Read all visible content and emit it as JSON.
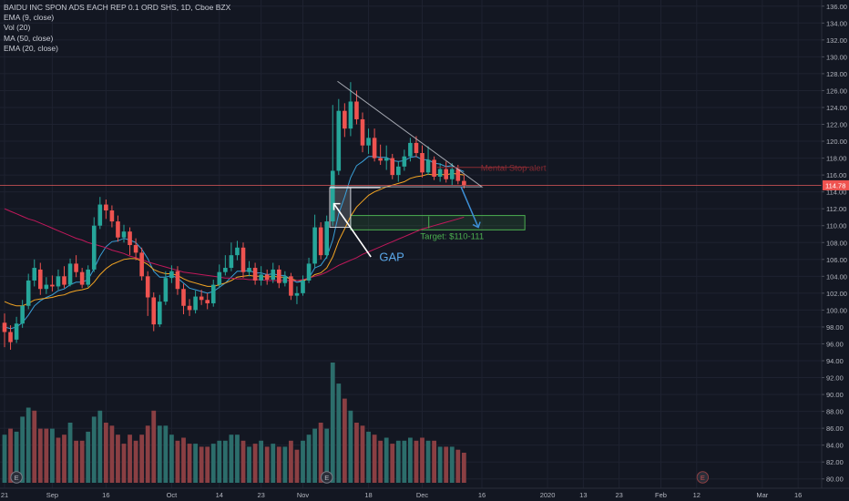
{
  "legend": {
    "title": "BAIDU INC SPON ADS EACH REP 0.1 ORD SHS, 1D, Cboe BZX",
    "ema9": "EMA (9, close)",
    "vol": "Vol (20)",
    "ma50": "MA (50, close)",
    "ema20": "EMA (20, close)"
  },
  "annotations": {
    "gap": "GAP",
    "target": "Target: $110-111",
    "mental_stop": "Mental Stop alert"
  },
  "colors": {
    "background": "#131722",
    "up": "#26a69a",
    "down": "#ef5350",
    "vol_up": "#2c6d6b",
    "vol_down": "#8a3f43",
    "ema9": "#3aa0d8",
    "ema20": "#f5a623",
    "ma50": "#c2185b",
    "price_line": "#e05a5a",
    "price_badge": "#ef5350",
    "target_box": "#4caf50",
    "blue_arrow": "#3d8fd6",
    "triangle": "#c9ccd4",
    "gap_box": "#5d6066"
  },
  "chart_data": {
    "type": "candlestick",
    "symbol": "BAIDU INC SPON ADS EACH REP 0.1 ORD SHS",
    "interval": "1D",
    "exchange": "Cboe BZX",
    "last_price": 114.78,
    "last_price_label": "114.78",
    "ylim": [
      79,
      137
    ],
    "y_ticks": [
      "80.00",
      "82.00",
      "84.00",
      "86.00",
      "88.00",
      "90.00",
      "92.00",
      "94.00",
      "96.00",
      "98.00",
      "100.00",
      "102.00",
      "104.00",
      "106.00",
      "108.00",
      "110.00",
      "112.00",
      "114.00",
      "116.00",
      "118.00",
      "120.00",
      "122.00",
      "124.00",
      "126.00",
      "128.00",
      "130.00",
      "132.00",
      "134.00",
      "136.00"
    ],
    "x_ticks": [
      {
        "label": "21",
        "day": 0
      },
      {
        "label": "Sep",
        "day": 8
      },
      {
        "label": "16",
        "day": 17
      },
      {
        "label": "Oct",
        "day": 28
      },
      {
        "label": "14",
        "day": 36
      },
      {
        "label": "23",
        "day": 43
      },
      {
        "label": "Nov",
        "day": 50
      },
      {
        "label": "18",
        "day": 61
      },
      {
        "label": "Dec",
        "day": 70
      },
      {
        "label": "16",
        "day": 80
      },
      {
        "label": "2020",
        "day": 91
      },
      {
        "label": "13",
        "day": 97
      },
      {
        "label": "23",
        "day": 103
      },
      {
        "label": "Feb",
        "day": 110
      },
      {
        "label": "12",
        "day": 116
      },
      {
        "label": "Mar",
        "day": 127
      },
      {
        "label": "16",
        "day": 133
      }
    ],
    "earnings_markers": [
      {
        "label": "E",
        "day": 2
      },
      {
        "label": "E",
        "day": 54
      },
      {
        "label": "E",
        "day": 117
      }
    ],
    "candles": [
      [
        98.5,
        97.4,
        99.6,
        95.6
      ],
      [
        97.4,
        96.2,
        98.2,
        95.3
      ],
      [
        96.5,
        98.4,
        99.2,
        96.1
      ],
      [
        98.4,
        100.5,
        101.2,
        97.9
      ],
      [
        100.5,
        103.5,
        104.3,
        100.1
      ],
      [
        103.5,
        105.0,
        106.0,
        102.8
      ],
      [
        104.8,
        102.5,
        105.6,
        101.8
      ],
      [
        102.5,
        103.0,
        103.9,
        101.9
      ],
      [
        103.0,
        102.8,
        104.1,
        102.2
      ],
      [
        102.8,
        104.0,
        104.8,
        102.4
      ],
      [
        104.0,
        103.0,
        105.2,
        102.6
      ],
      [
        103.0,
        105.5,
        106.1,
        102.8
      ],
      [
        105.5,
        104.5,
        106.5,
        103.9
      ],
      [
        104.5,
        103.0,
        105.0,
        102.6
      ],
      [
        103.0,
        104.8,
        105.3,
        102.7
      ],
      [
        104.8,
        110.0,
        111.0,
        104.5
      ],
      [
        110.0,
        112.5,
        113.4,
        109.6
      ],
      [
        112.5,
        111.8,
        113.1,
        110.8
      ],
      [
        111.8,
        110.5,
        112.4,
        109.8
      ],
      [
        110.5,
        108.6,
        111.2,
        108.1
      ],
      [
        108.6,
        109.3,
        110.1,
        108.0
      ],
      [
        109.3,
        107.7,
        109.8,
        106.5
      ],
      [
        107.7,
        106.8,
        108.5,
        105.9
      ],
      [
        106.8,
        104.0,
        107.4,
        103.5
      ],
      [
        104.0,
        101.5,
        104.6,
        99.3
      ],
      [
        101.5,
        98.3,
        102.1,
        97.5
      ],
      [
        98.3,
        101.0,
        101.8,
        98.0
      ],
      [
        101.0,
        103.8,
        104.6,
        100.6
      ],
      [
        103.8,
        104.6,
        105.3,
        103.2
      ],
      [
        104.6,
        102.5,
        105.2,
        101.8
      ],
      [
        102.5,
        100.5,
        103.1,
        99.5
      ],
      [
        100.5,
        100.0,
        101.3,
        99.3
      ],
      [
        100.0,
        101.6,
        102.3,
        99.6
      ],
      [
        101.6,
        101.2,
        102.4,
        100.6
      ],
      [
        101.2,
        100.8,
        102.0,
        100.1
      ],
      [
        100.8,
        103.0,
        103.6,
        100.4
      ],
      [
        103.0,
        104.5,
        105.4,
        102.6
      ],
      [
        104.5,
        105.0,
        106.5,
        104.1
      ],
      [
        105.0,
        106.5,
        108.0,
        104.6
      ],
      [
        106.5,
        107.4,
        108.2,
        105.9
      ],
      [
        107.4,
        104.5,
        108.0,
        103.8
      ],
      [
        104.5,
        105.0,
        105.8,
        104.0
      ],
      [
        105.0,
        103.5,
        105.6,
        103.0
      ],
      [
        103.5,
        104.2,
        105.2,
        102.9
      ],
      [
        104.2,
        103.6,
        104.8,
        103.0
      ],
      [
        103.6,
        104.8,
        105.6,
        103.2
      ],
      [
        104.8,
        103.2,
        105.3,
        102.6
      ],
      [
        103.2,
        104.0,
        104.6,
        102.8
      ],
      [
        104.0,
        101.7,
        104.4,
        101.2
      ],
      [
        101.7,
        102.0,
        102.8,
        100.7
      ],
      [
        102.0,
        103.5,
        104.1,
        101.7
      ],
      [
        103.5,
        105.5,
        106.2,
        103.2
      ],
      [
        105.5,
        109.8,
        111.3,
        105.0
      ],
      [
        109.8,
        106.5,
        110.4,
        106.0
      ],
      [
        106.5,
        110.5,
        111.2,
        106.1
      ],
      [
        110.5,
        116.5,
        124.3,
        110.0
      ],
      [
        116.5,
        123.6,
        125.0,
        116.0
      ],
      [
        123.6,
        121.5,
        124.5,
        120.5
      ],
      [
        121.5,
        124.7,
        127.0,
        120.6
      ],
      [
        124.7,
        122.6,
        126.0,
        122.0
      ],
      [
        122.6,
        119.5,
        123.4,
        118.7
      ],
      [
        119.5,
        120.4,
        121.5,
        118.5
      ],
      [
        120.4,
        118.0,
        121.5,
        117.6
      ],
      [
        118.0,
        117.7,
        119.6,
        117.2
      ],
      [
        117.7,
        118.0,
        119.5,
        116.6
      ],
      [
        118.0,
        116.0,
        118.5,
        115.5
      ],
      [
        116.0,
        117.0,
        117.6,
        115.2
      ],
      [
        117.0,
        118.2,
        119.0,
        116.5
      ],
      [
        118.2,
        119.8,
        120.4,
        117.6
      ],
      [
        119.8,
        118.6,
        120.6,
        118.1
      ],
      [
        118.6,
        116.3,
        119.5,
        115.7
      ],
      [
        116.3,
        117.8,
        119.4,
        116.0
      ],
      [
        117.8,
        115.8,
        118.2,
        115.4
      ],
      [
        115.8,
        116.7,
        117.4,
        115.2
      ],
      [
        116.7,
        115.5,
        117.6,
        115.1
      ],
      [
        115.5,
        116.7,
        117.4,
        114.8
      ],
      [
        116.7,
        115.3,
        117.2,
        114.9
      ],
      [
        115.3,
        114.8,
        116.0,
        114.4
      ]
    ],
    "volume": [
      [
        16,
        1
      ],
      [
        18,
        0
      ],
      [
        17,
        1
      ],
      [
        22,
        1
      ],
      [
        25,
        1
      ],
      [
        24,
        0
      ],
      [
        18,
        0
      ],
      [
        18,
        0
      ],
      [
        18,
        1
      ],
      [
        15,
        0
      ],
      [
        16,
        0
      ],
      [
        20,
        1
      ],
      [
        14,
        0
      ],
      [
        14,
        0
      ],
      [
        17,
        1
      ],
      [
        22,
        1
      ],
      [
        24,
        1
      ],
      [
        20,
        0
      ],
      [
        19,
        0
      ],
      [
        16,
        0
      ],
      [
        13,
        0
      ],
      [
        16,
        0
      ],
      [
        14,
        0
      ],
      [
        16,
        0
      ],
      [
        19,
        0
      ],
      [
        24,
        0
      ],
      [
        19,
        1
      ],
      [
        19,
        1
      ],
      [
        16,
        1
      ],
      [
        14,
        0
      ],
      [
        15,
        0
      ],
      [
        13,
        0
      ],
      [
        13,
        1
      ],
      [
        12,
        0
      ],
      [
        12,
        0
      ],
      [
        13,
        1
      ],
      [
        14,
        1
      ],
      [
        14,
        1
      ],
      [
        16,
        1
      ],
      [
        16,
        1
      ],
      [
        14,
        0
      ],
      [
        12,
        1
      ],
      [
        13,
        0
      ],
      [
        14,
        1
      ],
      [
        12,
        0
      ],
      [
        13,
        1
      ],
      [
        12,
        0
      ],
      [
        12,
        1
      ],
      [
        14,
        0
      ],
      [
        11,
        0
      ],
      [
        14,
        1
      ],
      [
        16,
        1
      ],
      [
        18,
        1
      ],
      [
        20,
        0
      ],
      [
        18,
        1
      ],
      [
        40,
        1
      ],
      [
        33,
        1
      ],
      [
        28,
        0
      ],
      [
        24,
        1
      ],
      [
        20,
        0
      ],
      [
        19,
        0
      ],
      [
        17,
        1
      ],
      [
        16,
        0
      ],
      [
        14,
        0
      ],
      [
        15,
        1
      ],
      [
        13,
        0
      ],
      [
        14,
        1
      ],
      [
        14,
        1
      ],
      [
        15,
        1
      ],
      [
        14,
        0
      ],
      [
        15,
        0
      ],
      [
        14,
        1
      ],
      [
        14,
        0
      ],
      [
        12,
        1
      ],
      [
        12,
        0
      ],
      [
        12,
        1
      ],
      [
        11,
        0
      ],
      [
        10,
        0
      ]
    ],
    "series": [
      {
        "name": "EMA (9, close)",
        "values": [
          98,
          97.8,
          98,
          98.5,
          99.4,
          100.5,
          101.1,
          101.5,
          101.8,
          102.3,
          102.5,
          103,
          103.3,
          103.3,
          103.6,
          104.9,
          106.4,
          107.5,
          108.1,
          108.2,
          108.5,
          108.3,
          108,
          107.2,
          106.1,
          104.6,
          103.9,
          103.9,
          104.1,
          103.8,
          103.2,
          102.6,
          102.4,
          102.2,
          102,
          102.2,
          102.7,
          103.2,
          103.9,
          104.6,
          104.6,
          104.7,
          104.4,
          104.4,
          104.2,
          104.3,
          104.1,
          104.1,
          103.6,
          103.3,
          103.4,
          103.8,
          105,
          105.3,
          106.3,
          108.3,
          111.4,
          113.4,
          115.7,
          117.1,
          117.6,
          118.2,
          118.2,
          118.1,
          118.1,
          117.7,
          117.6,
          117.7,
          118.1,
          118.2,
          117.8,
          117.8,
          117.4,
          117.3,
          117,
          117.1,
          116.7,
          116.4
        ]
      },
      {
        "name": "EMA (20, close)",
        "values": [
          101,
          100.7,
          100.5,
          100.5,
          100.8,
          101.2,
          101.3,
          101.4,
          101.5,
          101.7,
          101.8,
          102.1,
          102.3,
          102.4,
          102.6,
          103.3,
          104.2,
          104.9,
          105.4,
          105.7,
          106,
          106.1,
          106.1,
          105.8,
          105.4,
          104.8,
          104.5,
          104.3,
          104.3,
          104.1,
          103.7,
          103.4,
          103.2,
          103,
          102.8,
          102.8,
          103,
          103.2,
          103.5,
          103.9,
          104,
          104.1,
          104,
          104,
          103.9,
          104,
          103.9,
          103.9,
          103.7,
          103.5,
          103.5,
          103.7,
          104.2,
          104.4,
          105,
          106.3,
          108.2,
          109.6,
          111.1,
          112.2,
          112.9,
          113.6,
          114,
          114.3,
          114.6,
          114.8,
          115,
          115.2,
          115.6,
          115.8,
          115.9,
          116.1,
          116,
          116.1,
          116,
          116.2,
          116.1,
          116
        ]
      },
      {
        "name": "MA (50, close)",
        "values": [
          112,
          111.7,
          111.4,
          111.1,
          110.8,
          110.6,
          110.3,
          110,
          109.7,
          109.4,
          109.1,
          108.8,
          108.5,
          108.3,
          108,
          107.8,
          107.6,
          107.4,
          107.1,
          106.9,
          106.7,
          106.4,
          106.2,
          106,
          105.7,
          105.5,
          105.3,
          105.1,
          104.9,
          104.7,
          104.5,
          104.4,
          104.3,
          104.2,
          104.1,
          104,
          103.9,
          103.8,
          103.8,
          103.7,
          103.7,
          103.6,
          103.6,
          103.6,
          103.5,
          103.5,
          103.5,
          103.5,
          103.5,
          103.5,
          103.6,
          103.8,
          104,
          104.2,
          104.5,
          104.9,
          105.3,
          105.6,
          105.9,
          106.2,
          106.6,
          106.9,
          107.2,
          107.5,
          107.8,
          108.1,
          108.4,
          108.7,
          109,
          109.3,
          109.6,
          109.8,
          110,
          110.2,
          110.4,
          110.6,
          110.8,
          111
        ]
      }
    ]
  }
}
